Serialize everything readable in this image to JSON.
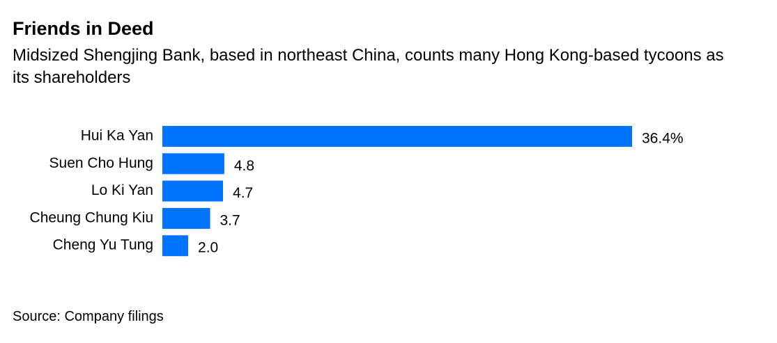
{
  "chart_data": {
    "type": "bar",
    "orientation": "horizontal",
    "title": "Friends in Deed",
    "subtitle": "Midsized Shengjing Bank, based in northeast China, counts many Hong Kong-based tycoons as its shareholders",
    "categories": [
      "Hui Ka Yan",
      "Suen Cho Hung",
      "Lo Ki Yan",
      "Cheung Chung Kiu",
      "Cheng Yu Tung"
    ],
    "values": [
      36.4,
      4.8,
      4.7,
      3.7,
      2.0
    ],
    "value_labels": [
      "36.4%",
      "4.8",
      "4.7",
      "3.7",
      "2.0"
    ],
    "color": "#0073ff",
    "source": "Source: Company filings"
  }
}
